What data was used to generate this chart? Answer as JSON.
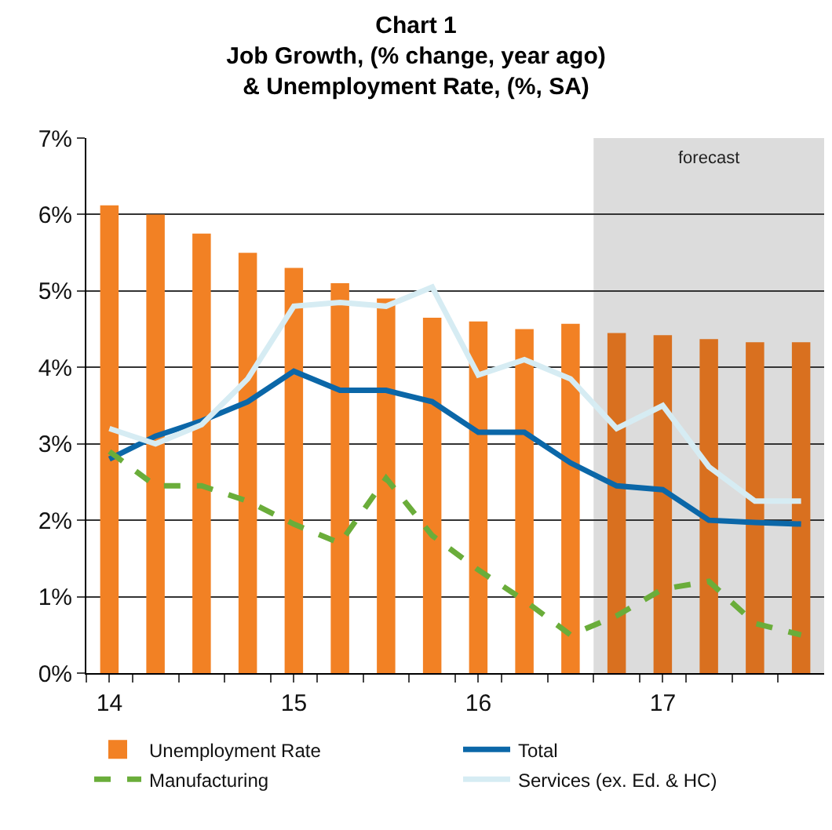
{
  "chart_data": {
    "type": "bar",
    "title": "Chart 1\nJob Growth, (% change, year ago)\n& Unemployment Rate, (%, SA)",
    "x": [
      14,
      14.25,
      14.5,
      14.75,
      15,
      15.25,
      15.5,
      15.75,
      16,
      16.25,
      16.5,
      16.75,
      17,
      17.25,
      17.5,
      17.75
    ],
    "xlim": [
      13.875,
      17.875
    ],
    "xticks": [
      {
        "value": 13.875,
        "label": null
      },
      {
        "value": 14,
        "label": "14"
      },
      {
        "value": 14.125,
        "label": null
      },
      {
        "value": 14.375,
        "label": null
      },
      {
        "value": 14.625,
        "label": null
      },
      {
        "value": 14.875,
        "label": null
      },
      {
        "value": 15,
        "label": "15"
      },
      {
        "value": 15.125,
        "label": null
      },
      {
        "value": 15.375,
        "label": null
      },
      {
        "value": 15.625,
        "label": null
      },
      {
        "value": 15.875,
        "label": null
      },
      {
        "value": 16,
        "label": "16"
      },
      {
        "value": 16.125,
        "label": null
      },
      {
        "value": 16.375,
        "label": null
      },
      {
        "value": 16.625,
        "label": null
      },
      {
        "value": 16.875,
        "label": null
      },
      {
        "value": 17,
        "label": "17"
      },
      {
        "value": 17.125,
        "label": null
      },
      {
        "value": 17.375,
        "label": null
      },
      {
        "value": 17.625,
        "label": null
      }
    ],
    "ylim": [
      0,
      7
    ],
    "yticks": [
      {
        "value": 0,
        "label": "0%"
      },
      {
        "value": 1,
        "label": "1%"
      },
      {
        "value": 2,
        "label": "2%"
      },
      {
        "value": 3,
        "label": "3%"
      },
      {
        "value": 4,
        "label": "4%"
      },
      {
        "value": 5,
        "label": "5%"
      },
      {
        "value": 6,
        "label": "6%"
      },
      {
        "value": 7,
        "label": "7%"
      }
    ],
    "grid": "y",
    "legend": "bottom",
    "bands": [
      {
        "axis": "x",
        "from": 16.625,
        "to": 17.875,
        "label": "forecast",
        "color": "#dcdcdc"
      }
    ],
    "series": [
      {
        "name": "Unemployment Rate",
        "colors": [
          "#f28124",
          "#f28124",
          "#f28124",
          "#f28124",
          "#f28124",
          "#f28124",
          "#f28124",
          "#f28124",
          "#f28124",
          "#f28124",
          "#f28124",
          "#d9701f",
          "#d9701f",
          "#d9701f",
          "#d9701f",
          "#d9701f"
        ],
        "values": [
          6.12,
          6.0,
          5.75,
          5.5,
          5.3,
          5.1,
          4.9,
          4.65,
          4.6,
          4.5,
          4.57,
          4.45,
          4.42,
          4.37,
          4.33,
          4.33
        ]
      },
      {
        "name": "Total",
        "type": "line",
        "color": "#0b67a8",
        "line_style": "solid",
        "values": [
          2.8,
          3.1,
          3.3,
          3.55,
          3.95,
          3.7,
          3.7,
          3.55,
          3.15,
          3.15,
          2.75,
          2.45,
          2.4,
          2.0,
          1.97,
          1.95
        ]
      },
      {
        "name": "Manufacturing",
        "type": "line",
        "color": "#6aad3a",
        "line_style": "dashed",
        "values": [
          2.9,
          2.45,
          2.45,
          2.25,
          1.95,
          1.7,
          2.55,
          1.8,
          1.35,
          0.95,
          0.5,
          0.75,
          1.1,
          1.2,
          0.65,
          0.5
        ]
      },
      {
        "name": "Services (ex. Ed. & HC)",
        "type": "line",
        "color": "#d6ecf3",
        "line_style": "solid",
        "values": [
          3.2,
          3.0,
          3.25,
          3.85,
          4.8,
          4.85,
          4.8,
          5.05,
          3.9,
          4.1,
          3.85,
          3.2,
          3.5,
          2.7,
          2.25,
          2.25
        ]
      }
    ]
  }
}
